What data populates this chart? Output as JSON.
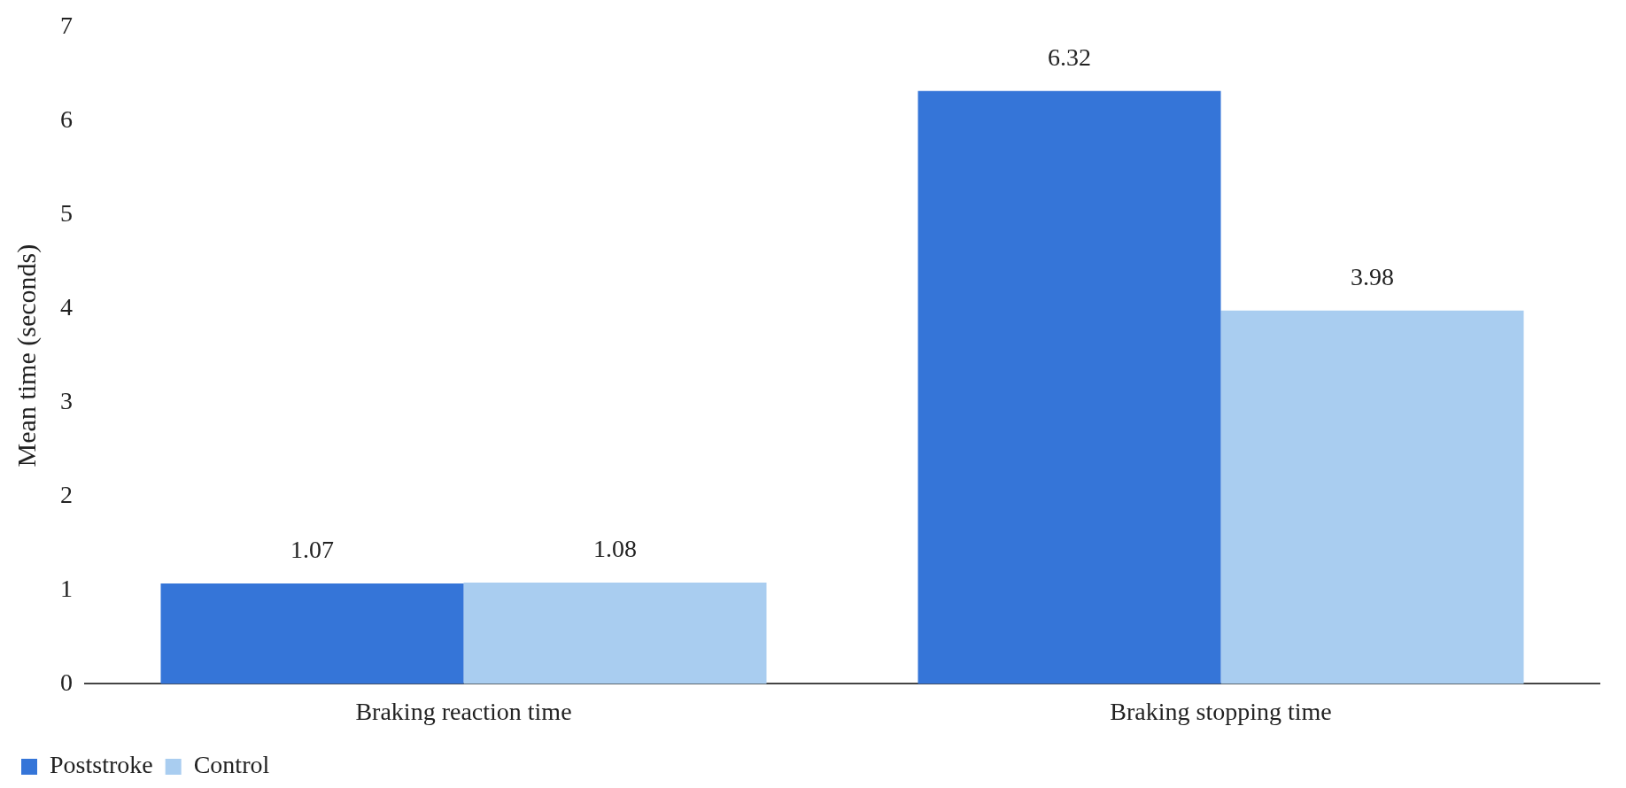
{
  "chart_data": {
    "type": "bar",
    "ylabel": "Mean time (seconds)",
    "categories": [
      "Braking reaction time",
      "Braking stopping time"
    ],
    "series": [
      {
        "name": "Poststroke",
        "color": "#3575d8",
        "values": [
          1.07,
          6.32
        ]
      },
      {
        "name": "Control",
        "color": "#a9cdf0",
        "values": [
          1.08,
          3.98
        ]
      }
    ],
    "ylim": [
      0,
      7
    ],
    "yticks": [
      0,
      1,
      2,
      3,
      4,
      5,
      6,
      7
    ],
    "grid": false,
    "legend": "bottom left",
    "data_labels": true
  }
}
